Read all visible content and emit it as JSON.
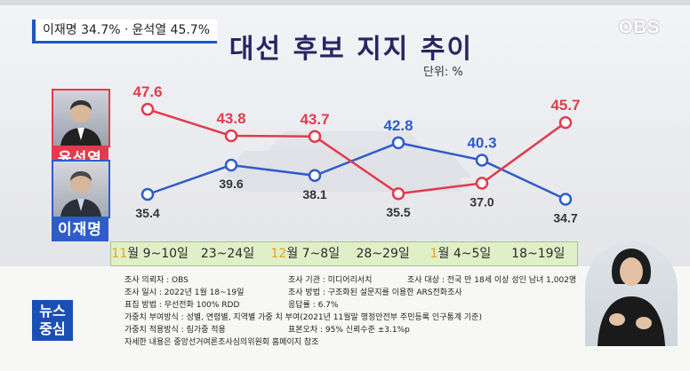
{
  "caption": "이재명 34.7%ㆍ윤석열 45.7%",
  "logo": "OBS",
  "title": "대선 후보 지지 추이",
  "unit": "단위: %",
  "candidates": {
    "yoon": {
      "name": "윤석열",
      "color": "#e33b4c"
    },
    "lee": {
      "name": "이재명",
      "color": "#2e5dc9"
    }
  },
  "chart_data": {
    "type": "line",
    "title": "대선 후보 지지 추이",
    "categories": [
      "11월 9~10일",
      "23~24일",
      "12월 7~8일",
      "28~29일",
      "1월 4~5일",
      "18~19일"
    ],
    "series": [
      {
        "name": "윤석열",
        "color": "#e33b4c",
        "values": [
          47.6,
          43.8,
          43.7,
          35.5,
          37.0,
          45.7
        ],
        "labels": [
          "47.6",
          "43.8",
          "43.7",
          "35.5",
          "37.0",
          "45.7"
        ]
      },
      {
        "name": "이재명",
        "color": "#2e5dc9",
        "values": [
          35.4,
          39.6,
          38.1,
          42.8,
          40.3,
          34.7
        ],
        "labels": [
          "35.4",
          "39.6",
          "38.1",
          "42.8",
          "40.3",
          "34.7"
        ]
      }
    ],
    "ylim": [
      30,
      50
    ],
    "grid": false,
    "legend": "left"
  },
  "xaxis": [
    {
      "hl": "11",
      "rest": "월 9~10일"
    },
    {
      "hl": "",
      "rest": "23~24일"
    },
    {
      "hl": "12",
      "rest": "월 7~8일"
    },
    {
      "hl": "",
      "rest": "28~29일"
    },
    {
      "hl": "1",
      "rest": "월 4~5일"
    },
    {
      "hl": "",
      "rest": "18~19일"
    }
  ],
  "footer": {
    "r1c1": "조사 의뢰자 : OBS",
    "r1c2": "조사 기관 : 미디어리서치",
    "r1c3": "조사 대상 : 전국 만 18세 이상 성인 남녀 1,002명",
    "r2c1": "조사 일시 : 2022년 1월 18~19일",
    "r2c2": "조사 방법 : 구조화된 설문지를 이용한 ARS전화조사",
    "r3c1": "표집 방법 : 무선전화 100% RDD",
    "r3c2": "응답률 : 6.7%",
    "r4": "가중치 부여방식 : 성별, 연령별, 지역별 가중 치 부여(2021년 11월말 행정안전부 주민등록 인구통계 기준)",
    "r5c1": "가중치 적용방식 : 림가중 적용",
    "r5c2": "표본오차 : 95% 신뢰수준 ±3.1%p",
    "r6": "자세한 내용은 중앙선거여론조사심의위원회 홈페이지 참조"
  },
  "news_badge": {
    "line1": "뉴스",
    "line2": "중심"
  }
}
